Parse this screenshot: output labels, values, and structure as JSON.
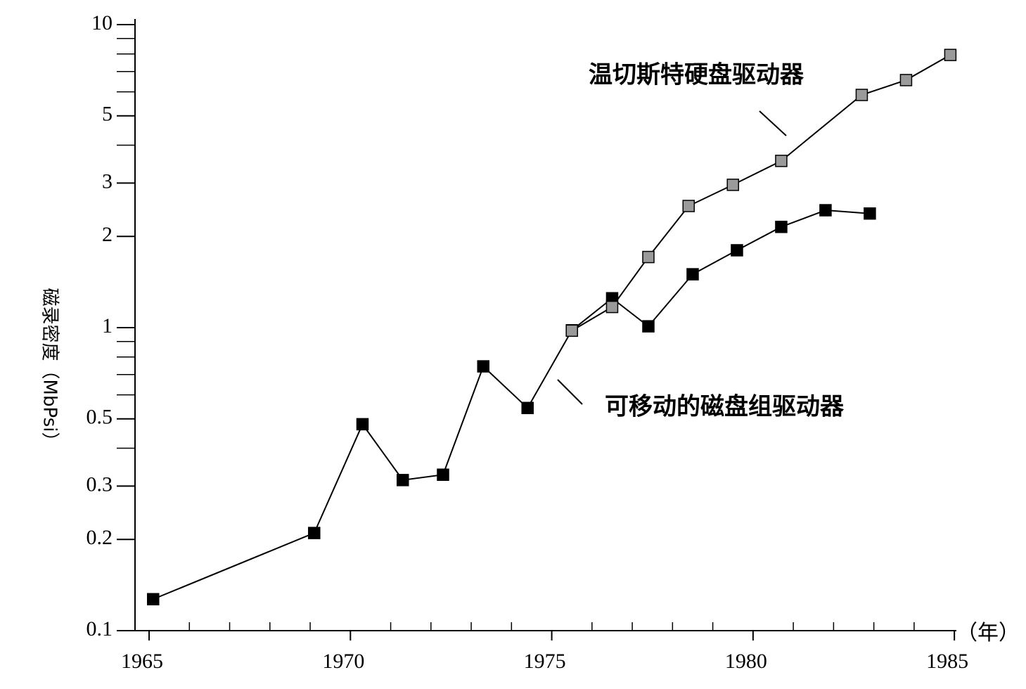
{
  "chart_data": {
    "type": "line",
    "log_y": true,
    "y_label": "磁录密度（MbPsi）",
    "x_unit": "（年）",
    "xlim": [
      1964.65,
      1985.05
    ],
    "xticks": [
      1965,
      1970,
      1975,
      1980,
      1985
    ],
    "xticks_minor": [
      1966,
      1967,
      1968,
      1969,
      1971,
      1972,
      1973,
      1974,
      1976,
      1977,
      1978,
      1979,
      1981,
      1982,
      1983,
      1984
    ],
    "ylim": [
      0.1,
      10
    ],
    "yticks": [
      0.1,
      0.2,
      0.3,
      0.5,
      1,
      2,
      3,
      5,
      10
    ],
    "yticks_minor": [
      0.4,
      0.6,
      0.7,
      0.8,
      0.9,
      4,
      6,
      7,
      8,
      9
    ],
    "series": [
      {
        "name": "可移动的磁盘组驱动器",
        "color": "#000000",
        "x": [
          1965.1,
          1969.1,
          1970.3,
          1971.3,
          1972.3,
          1973.3,
          1974.4,
          1975.5,
          1976.5,
          1977.4,
          1978.5,
          1979.6,
          1980.7,
          1981.8,
          1982.9
        ],
        "values": [
          0.127,
          0.21,
          0.48,
          0.314,
          0.327,
          0.745,
          0.543,
          0.98,
          1.25,
          1.01,
          1.5,
          1.8,
          2.15,
          2.44,
          2.38
        ]
      },
      {
        "name": "温切斯特硬盘驱动器",
        "color": "#9a9a9a",
        "x": [
          1975.5,
          1976.5,
          1977.4,
          1978.4,
          1979.5,
          1980.7,
          1982.7,
          1983.8,
          1984.9
        ],
        "values": [
          0.977,
          1.17,
          1.71,
          2.52,
          2.96,
          3.55,
          5.86,
          6.56,
          7.94
        ]
      }
    ]
  }
}
